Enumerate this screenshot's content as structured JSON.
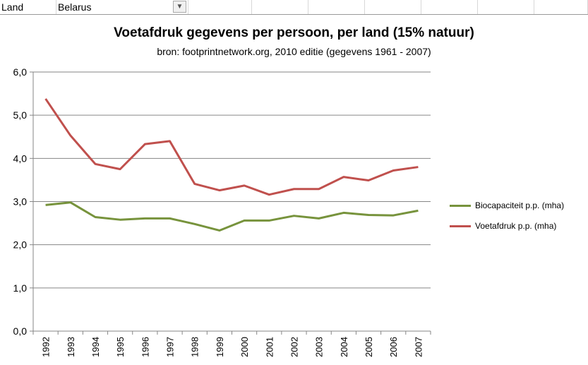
{
  "sheet": {
    "label_cell": "Land",
    "value_cell": "Belarus",
    "filter_icon": "filter-icon"
  },
  "chart_data": {
    "type": "line",
    "title": "Voetafdruk gegevens per persoon,  per land (15% natuur)",
    "subtitle": "bron: footprintnetwork.org, 2010 editie (gegevens 1961 - 2007)",
    "categories": [
      "1992",
      "1993",
      "1994",
      "1995",
      "1996",
      "1997",
      "1998",
      "1999",
      "2000",
      "2001",
      "2002",
      "2003",
      "2004",
      "2005",
      "2006",
      "2007"
    ],
    "ylim": [
      0,
      6
    ],
    "yticks": [
      "0,0",
      "1,0",
      "2,0",
      "3,0",
      "4,0",
      "5,0",
      "6,0"
    ],
    "grid": true,
    "legend": "right",
    "series": [
      {
        "name": "Biocapaciteit p.p. (mha)",
        "color": "#77933c",
        "values": [
          2.92,
          2.98,
          2.64,
          2.58,
          2.61,
          2.61,
          2.48,
          2.33,
          2.56,
          2.56,
          2.67,
          2.61,
          2.74,
          2.69,
          2.68,
          2.79
        ]
      },
      {
        "name": "Voetafdruk p.p. (mha)",
        "color": "#c0504d",
        "values": [
          5.38,
          4.53,
          3.87,
          3.75,
          4.33,
          4.4,
          3.41,
          3.26,
          3.37,
          3.16,
          3.29,
          3.29,
          3.57,
          3.49,
          3.72,
          3.8
        ]
      }
    ]
  }
}
